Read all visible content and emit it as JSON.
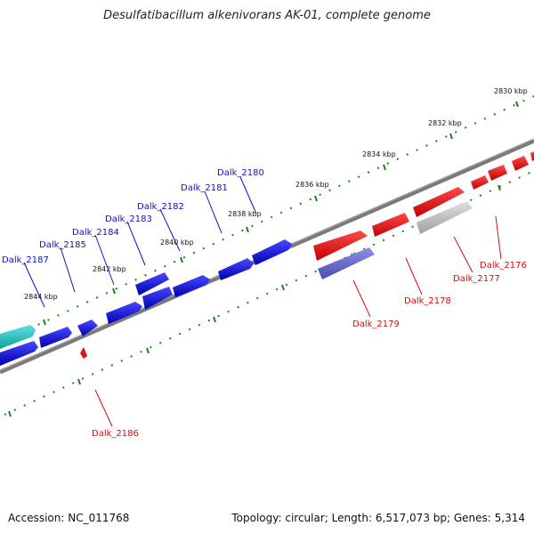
{
  "title": "Desulfatibacillum alkenivorans AK-01, complete genome",
  "footer": {
    "accession": "Accession: NC_011768",
    "summary": "Topology: circular; Length: 6,517,073 bp; Genes: 5,314"
  },
  "colors": {
    "forward_gene": "#1010e0",
    "reverse_gene": "#e01010",
    "highlight_forward": "#7070d0",
    "pseudo_gene": "#b8b8b8",
    "rna_gene": "#20c0c0",
    "backbone": "#808080",
    "ticks": "#208020",
    "forward_label": "#1010c0",
    "reverse_label": "#d01010"
  },
  "scale_labels": [
    "2830 kbp",
    "2832 kbp",
    "2834 kbp",
    "2836 kbp",
    "2838 kbp",
    "2840 kbp",
    "2842 kbp",
    "2844 kbp"
  ],
  "forward_labels": [
    "Dalk_2180",
    "Dalk_2181",
    "Dalk_2182",
    "Dalk_2183",
    "Dalk_2184",
    "Dalk_2185",
    "Dalk_2187"
  ],
  "reverse_labels": [
    "Dalk_2176",
    "Dalk_2177",
    "Dalk_2178",
    "Dalk_2179",
    "Dalk_2186"
  ]
}
